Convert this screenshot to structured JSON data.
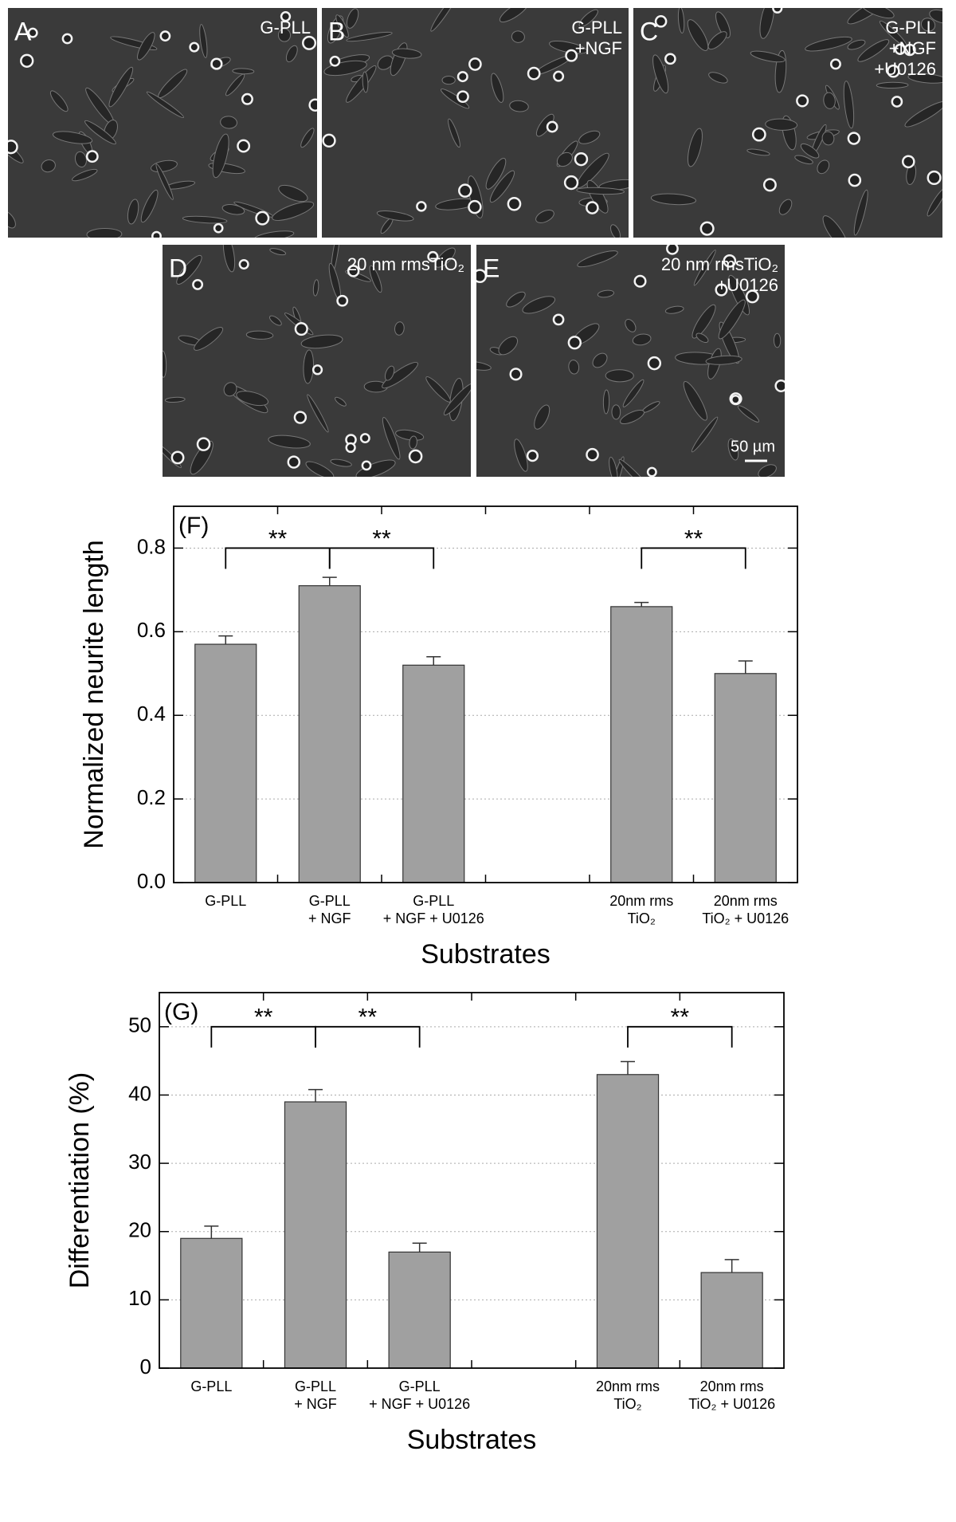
{
  "panels": [
    {
      "letter": "A",
      "caption": [
        "G-PLL"
      ]
    },
    {
      "letter": "B",
      "caption": [
        "G-PLL",
        "+NGF"
      ]
    },
    {
      "letter": "C",
      "caption": [
        "G-PLL",
        "+NGF",
        "+U0126"
      ]
    },
    {
      "letter": "D",
      "caption": [
        "20 nm rmsTiO₂"
      ]
    },
    {
      "letter": "E",
      "caption": [
        "20 nm rmsTiO₂",
        "+U0126"
      ]
    }
  ],
  "scale_bar": "50 µm",
  "chart_data": [
    {
      "type": "bar",
      "panel_label": "(F)",
      "ylabel": "Normalized neurite length",
      "xlabel": "Substrates",
      "categories": [
        [
          "G-PLL"
        ],
        [
          "G-PLL",
          "+ NGF"
        ],
        [
          "G-PLL",
          "+ NGF + U0126"
        ],
        null,
        [
          "20nm rms",
          "TiO₂"
        ],
        [
          "20nm rms",
          "TiO₂ + U0126"
        ]
      ],
      "values": [
        0.57,
        0.71,
        0.52,
        null,
        0.66,
        0.5
      ],
      "errors": [
        0.02,
        0.02,
        0.02,
        null,
        0.01,
        0.03
      ],
      "color": "#a0a0a0",
      "ylim": [
        0,
        0.9
      ],
      "yticks": [
        {
          "value": 0,
          "label": "0.0"
        },
        0.2,
        0.4,
        0.6,
        0.8
      ],
      "grid": true,
      "significance": [
        {
          "label": "**",
          "from": 0,
          "to": 1
        },
        {
          "label": "**",
          "from": 1,
          "to": 2
        },
        {
          "label": "**",
          "from": 4,
          "to": 5
        }
      ]
    },
    {
      "type": "bar",
      "panel_label": "(G)",
      "ylabel": "Differentiation (%)",
      "xlabel": "Substrates",
      "categories": [
        [
          "G-PLL"
        ],
        [
          "G-PLL",
          "+ NGF"
        ],
        [
          "G-PLL",
          "+ NGF + U0126"
        ],
        null,
        [
          "20nm rms",
          "TiO₂"
        ],
        [
          "20nm rms",
          "TiO₂ + U0126"
        ]
      ],
      "values": [
        19,
        39,
        17,
        null,
        43,
        14
      ],
      "errors": [
        1.8,
        1.8,
        1.3,
        null,
        1.9,
        1.9
      ],
      "color": "#a0a0a0",
      "ylim": [
        0,
        55
      ],
      "yticks": [
        0,
        10,
        20,
        30,
        40,
        50
      ],
      "grid": true,
      "significance": [
        {
          "label": "**",
          "from": 0,
          "to": 1
        },
        {
          "label": "**",
          "from": 1,
          "to": 2
        },
        {
          "label": "**",
          "from": 4,
          "to": 5
        }
      ]
    }
  ]
}
